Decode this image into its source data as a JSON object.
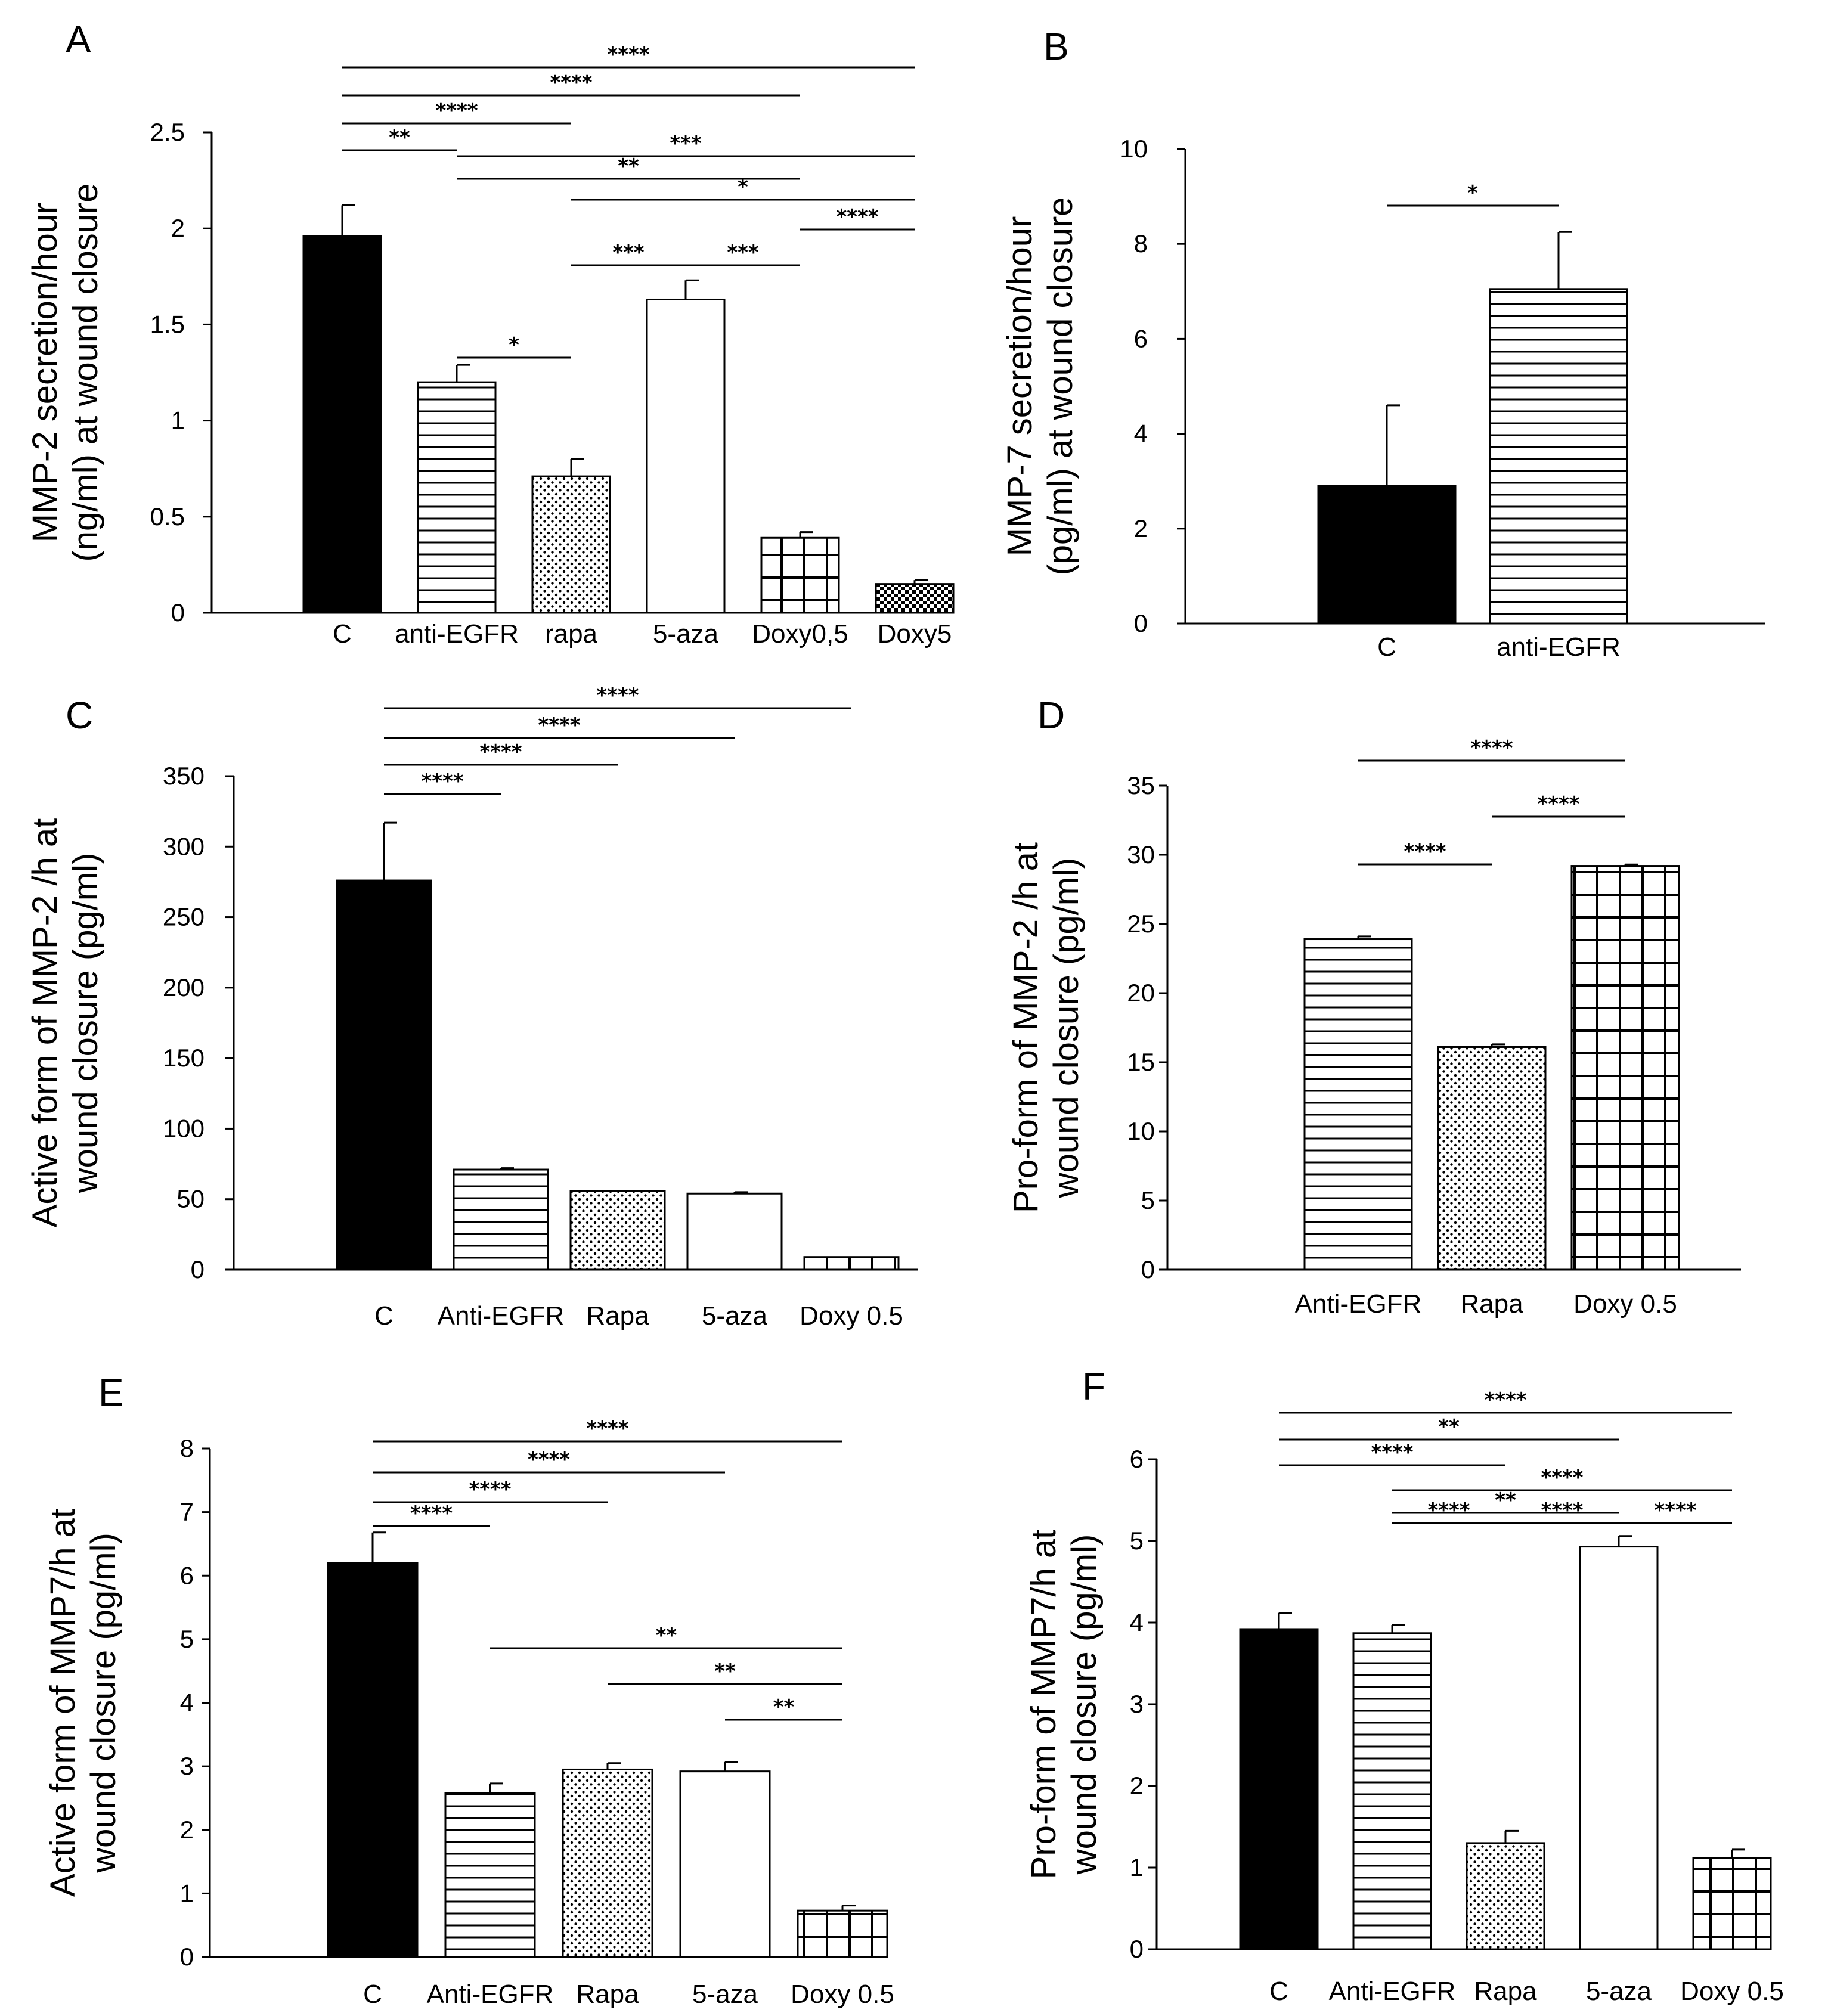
{
  "chart_data": [
    {
      "panel": "A",
      "type": "bar",
      "ylabel": [
        "MMP-2 secretion/hour",
        "(ng/ml) at wound closure"
      ],
      "yticks": [
        "0",
        "0.5",
        "1",
        "1.5",
        "2",
        "2.5"
      ],
      "ylim": [
        0,
        2.5
      ],
      "categories": [
        "C",
        "anti-EGFR",
        "rapa",
        "5-aza",
        "Doxy0,5",
        "Doxy5"
      ],
      "values": [
        1.96,
        1.2,
        0.71,
        1.63,
        0.39,
        0.15
      ],
      "errors": [
        0.16,
        0.09,
        0.09,
        0.1,
        0.03,
        0.02
      ],
      "patterns": [
        "solid",
        "hlines",
        "dots",
        "white",
        "grid",
        "checker"
      ],
      "comparisons": [
        {
          "from": 0,
          "to": 5,
          "label": "****"
        },
        {
          "from": 0,
          "to": 4,
          "label": "****"
        },
        {
          "from": 0,
          "to": 2,
          "label": "****"
        },
        {
          "from": 0,
          "to": 1,
          "label": "**"
        },
        {
          "from": 1,
          "to": 5,
          "label": "***"
        },
        {
          "from": 1,
          "to": 4,
          "label": "**"
        },
        {
          "from": 2,
          "to": 5,
          "label": "*"
        },
        {
          "from": 4,
          "to": 5,
          "label": "****"
        },
        {
          "from": 2,
          "to": 3,
          "label": "***"
        },
        {
          "from": 3,
          "to": 4,
          "label": "***"
        },
        {
          "from": 1,
          "to": 2,
          "label": "*"
        }
      ]
    },
    {
      "panel": "B",
      "type": "bar",
      "ylabel": [
        "MMP-7 secretion/hour",
        "(pg/ml) at wound closure"
      ],
      "yticks": [
        "0",
        "2",
        "4",
        "6",
        "8",
        "10"
      ],
      "ylim": [
        0,
        10
      ],
      "categories": [
        "C",
        "anti-EGFR"
      ],
      "values": [
        2.9,
        7.05
      ],
      "errors": [
        1.7,
        1.2
      ],
      "patterns": [
        "solid",
        "hlines"
      ],
      "comparisons": [
        {
          "from": 0,
          "to": 1,
          "label": "*"
        }
      ]
    },
    {
      "panel": "C",
      "type": "bar",
      "ylabel": [
        "Active form of MMP-2 /h at",
        "wound closure (pg/ml)"
      ],
      "yticks": [
        "0",
        "50",
        "100",
        "150",
        "200",
        "250",
        "300",
        "350"
      ],
      "ylim": [
        0,
        350
      ],
      "categories": [
        "C",
        "Anti-EGFR",
        "Rapa",
        "5-aza",
        "Doxy 0.5"
      ],
      "values": [
        276,
        71,
        56,
        54,
        9
      ],
      "errors": [
        41,
        1,
        0,
        1,
        0
      ],
      "patterns": [
        "solid",
        "hlines",
        "dots",
        "white",
        "grid"
      ],
      "comparisons": [
        {
          "from": 0,
          "to": 4,
          "label": "****"
        },
        {
          "from": 0,
          "to": 3,
          "label": "****"
        },
        {
          "from": 0,
          "to": 2,
          "label": "****"
        },
        {
          "from": 0,
          "to": 1,
          "label": "****"
        }
      ]
    },
    {
      "panel": "D",
      "type": "bar",
      "ylabel": [
        "Pro-form of MMP-2 /h at",
        "wound closure (pg/ml)"
      ],
      "yticks": [
        "0",
        "5",
        "10",
        "15",
        "20",
        "25",
        "30",
        "35"
      ],
      "ylim": [
        0,
        35
      ],
      "categories": [
        "Anti-EGFR",
        "Rapa",
        "Doxy 0.5"
      ],
      "values": [
        23.9,
        16.1,
        29.2
      ],
      "errors": [
        0.2,
        0.2,
        0.1
      ],
      "patterns": [
        "hlines",
        "dots",
        "grid"
      ],
      "comparisons": [
        {
          "from": 0,
          "to": 2,
          "label": "****"
        },
        {
          "from": 1,
          "to": 2,
          "label": "****"
        },
        {
          "from": 0,
          "to": 1,
          "label": "****"
        }
      ]
    },
    {
      "panel": "E",
      "type": "bar",
      "ylabel": [
        "Active form of MMP7/h at",
        "wound closure (pg/ml)"
      ],
      "yticks": [
        "0",
        "1",
        "2",
        "3",
        "4",
        "5",
        "6",
        "7",
        "8"
      ],
      "ylim": [
        0,
        8
      ],
      "categories": [
        "C",
        "Anti-EGFR",
        "Rapa",
        "5-aza",
        "Doxy 0.5"
      ],
      "values": [
        6.2,
        2.58,
        2.95,
        2.92,
        0.73
      ],
      "errors": [
        0.48,
        0.15,
        0.1,
        0.15,
        0.08
      ],
      "patterns": [
        "solid",
        "hlines",
        "dots",
        "white",
        "grid"
      ],
      "comparisons": [
        {
          "from": 0,
          "to": 4,
          "label": "****"
        },
        {
          "from": 0,
          "to": 3,
          "label": "****"
        },
        {
          "from": 0,
          "to": 2,
          "label": "****"
        },
        {
          "from": 0,
          "to": 1,
          "label": "****"
        },
        {
          "from": 1,
          "to": 4,
          "label": "**"
        },
        {
          "from": 2,
          "to": 4,
          "label": "**"
        },
        {
          "from": 3,
          "to": 4,
          "label": "**"
        }
      ]
    },
    {
      "panel": "F",
      "type": "bar",
      "ylabel": [
        "Pro-form of MMP7/h at",
        "wound closure (pg/ml)"
      ],
      "yticks": [
        "0",
        "1",
        "2",
        "3",
        "4",
        "5",
        "6"
      ],
      "ylim": [
        0,
        6
      ],
      "categories": [
        "C",
        "Anti-EGFR",
        "Rapa",
        "5-aza",
        "Doxy 0.5"
      ],
      "values": [
        3.92,
        3.87,
        1.3,
        4.93,
        1.12
      ],
      "errors": [
        0.2,
        0.1,
        0.15,
        0.13,
        0.1
      ],
      "patterns": [
        "solid",
        "hlines",
        "dots",
        "white",
        "grid"
      ],
      "comparisons": [
        {
          "from": 0,
          "to": 4,
          "label": "****"
        },
        {
          "from": 0,
          "to": 3,
          "label": "**"
        },
        {
          "from": 0,
          "to": 2,
          "label": "****"
        },
        {
          "from": 1,
          "to": 4,
          "label": "****"
        },
        {
          "from": 1,
          "to": 3,
          "label": "**"
        },
        {
          "from": 1,
          "to": 2,
          "label": "****"
        },
        {
          "from": 2,
          "to": 3,
          "label": "****"
        },
        {
          "from": 3,
          "to": 4,
          "label": "****"
        }
      ]
    }
  ]
}
